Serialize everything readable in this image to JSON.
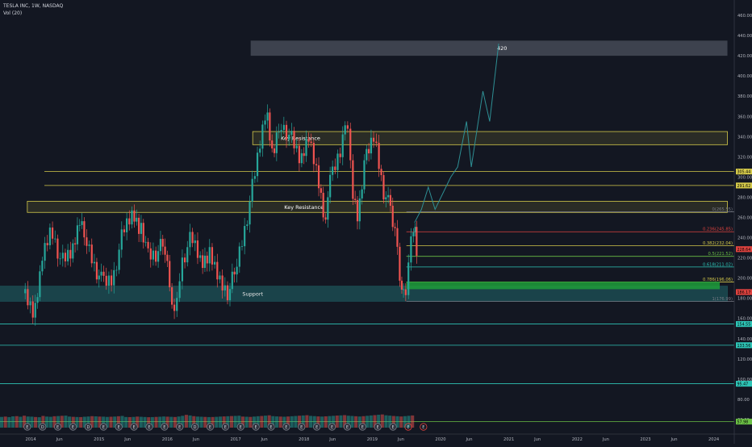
{
  "header": {
    "symbol_line": "TESLA INC, 1W, NASDAQ",
    "indicator_line": "Vol (20)"
  },
  "chart_data": {
    "type": "candlestick",
    "timeframe": "1W",
    "x_tick_labels": [
      "2014",
      "Jun",
      "2015",
      "Jun",
      "2016",
      "Jun",
      "2017",
      "Jun",
      "2018",
      "Jun",
      "2019",
      "Jun",
      "2020",
      "Jun",
      "2021",
      "Jun",
      "2022",
      "Jun",
      "2023",
      "Jun",
      "2024"
    ],
    "y_tick_labels": [
      "60.00",
      "80.00",
      "100.00",
      "120.00",
      "140.00",
      "160.00",
      "180.00",
      "200.00",
      "220.00",
      "240.00",
      "260.00",
      "280.00",
      "300.00",
      "320.00",
      "340.00",
      "360.00",
      "380.00",
      "400.00",
      "420.00",
      "440.00",
      "460.00"
    ],
    "ylim": [
      52,
      472
    ],
    "price_points": [
      [
        2013.9,
        185
      ],
      [
        2014.05,
        165
      ],
      [
        2014.15,
        215
      ],
      [
        2014.3,
        250
      ],
      [
        2014.45,
        215
      ],
      [
        2014.6,
        225
      ],
      [
        2014.7,
        255
      ],
      [
        2014.8,
        240
      ],
      [
        2014.95,
        210
      ],
      [
        2015.05,
        195
      ],
      [
        2015.2,
        200
      ],
      [
        2015.35,
        245
      ],
      [
        2015.5,
        265
      ],
      [
        2015.6,
        250
      ],
      [
        2015.7,
        225
      ],
      [
        2015.85,
        225
      ],
      [
        2015.95,
        235
      ],
      [
        2016.05,
        190
      ],
      [
        2016.12,
        160
      ],
      [
        2016.2,
        215
      ],
      [
        2016.35,
        240
      ],
      [
        2016.5,
        215
      ],
      [
        2016.6,
        225
      ],
      [
        2016.75,
        200
      ],
      [
        2016.9,
        185
      ],
      [
        2017.0,
        210
      ],
      [
        2017.15,
        255
      ],
      [
        2017.3,
        310
      ],
      [
        2017.45,
        370
      ],
      [
        2017.55,
        320
      ],
      [
        2017.65,
        355
      ],
      [
        2017.8,
        340
      ],
      [
        2017.95,
        315
      ],
      [
        2018.05,
        340
      ],
      [
        2018.2,
        300
      ],
      [
        2018.3,
        260
      ],
      [
        2018.4,
        300
      ],
      [
        2018.55,
        330
      ],
      [
        2018.62,
        370
      ],
      [
        2018.7,
        290
      ],
      [
        2018.8,
        260
      ],
      [
        2018.9,
        320
      ],
      [
        2019.0,
        340
      ],
      [
        2019.08,
        320
      ],
      [
        2019.15,
        290
      ],
      [
        2019.25,
        270
      ],
      [
        2019.35,
        240
      ],
      [
        2019.42,
        195
      ],
      [
        2019.47,
        178
      ],
      [
        2019.55,
        225
      ],
      [
        2019.62,
        255
      ],
      [
        2019.66,
        220
      ]
    ],
    "volume_bars": [
      62,
      70,
      58,
      75,
      80,
      66,
      90,
      72,
      68,
      60,
      55,
      85,
      70,
      65,
      78,
      82,
      88,
      92,
      70,
      64,
      60,
      58,
      66,
      72,
      80,
      75,
      70,
      68,
      62,
      66,
      70,
      78,
      85,
      60,
      58,
      62,
      70,
      65,
      60,
      55,
      58,
      62,
      66,
      72,
      68,
      64,
      60,
      72,
      88,
      110,
      96,
      80,
      70,
      66,
      62,
      58,
      60,
      64,
      70,
      74,
      78,
      82,
      86,
      90,
      70,
      66,
      62,
      70,
      78,
      84,
      92,
      100,
      80,
      74,
      70,
      66,
      72,
      78,
      84,
      90,
      96,
      102,
      86,
      80,
      74,
      70,
      76,
      82,
      88,
      94,
      98,
      104,
      90,
      84,
      78,
      72,
      80,
      88,
      96,
      104,
      112,
      120,
      100,
      92,
      84,
      78,
      72,
      80,
      88,
      96
    ],
    "projection_label": "420",
    "zones": [
      {
        "name": "420",
        "lo": 420,
        "hi": 435,
        "x0": 2017.22,
        "x1": 2024.2,
        "color": "#4c525e"
      },
      {
        "name": "Key Resistance",
        "lo": 332,
        "hi": 345,
        "x0": 2017.25,
        "x1": 2024.2,
        "color": "#d4c94a"
      },
      {
        "name": "Key Resistance",
        "lo": 265,
        "hi": 276,
        "x0": 2013.95,
        "x1": 2024.2,
        "color": "#d4c94a"
      },
      {
        "name": "Support",
        "lo": 177,
        "hi": 192,
        "x0": 2013.5,
        "x1": 2024.2,
        "color": "#1d4f55"
      }
    ],
    "zone_labels": [
      "Key Resistance",
      "Key Resistance",
      "Support"
    ],
    "horizontal_levels": [
      {
        "price": 305.44,
        "label": "305.44",
        "color": "#d4c94a"
      },
      {
        "price": 291.62,
        "label": "291.62",
        "color": "#d4c94a"
      },
      {
        "price": 154.55,
        "label": "154.55",
        "color": "#2ec4b6"
      },
      {
        "price": 133.56,
        "label": "133.56",
        "color": "#2ec4b6"
      },
      {
        "price": 95.47,
        "label": "95.47",
        "color": "#2ec4b6"
      },
      {
        "price": 57.98,
        "label": "57.98",
        "color": "#6abe45"
      }
    ],
    "fib_levels": [
      {
        "price": 265.55,
        "label": "0(265.55)",
        "color": "#787b86"
      },
      {
        "price": 245.85,
        "label": "0.236(245.85)",
        "color": "#e0433f"
      },
      {
        "price": 232.04,
        "label": "0.382(232.04)",
        "color": "#d4c94a"
      },
      {
        "price": 221.52,
        "label": "0.5(221.52)",
        "color": "#6abe45"
      },
      {
        "price": 211.02,
        "label": "0.618(211.02)",
        "color": "#2ec4b6"
      },
      {
        "price": 196.06,
        "label": "0.786(196.06)",
        "color": "#d4c94a"
      },
      {
        "price": 176.99,
        "label": "1(176.99)",
        "color": "#787b86"
      }
    ],
    "price_badges": [
      {
        "price": 228.64,
        "label": "228.64",
        "color": "#e0433f"
      },
      {
        "price": 186.17,
        "label": "186.17",
        "color": "#e0433f"
      }
    ],
    "projection": [
      [
        2019.62,
        255
      ],
      [
        2019.72,
        268
      ],
      [
        2019.82,
        290
      ],
      [
        2019.92,
        268
      ],
      [
        2020.15,
        300
      ],
      [
        2020.25,
        310
      ],
      [
        2020.38,
        355
      ],
      [
        2020.45,
        310
      ],
      [
        2020.62,
        385
      ],
      [
        2020.72,
        355
      ],
      [
        2020.85,
        432
      ]
    ],
    "event_markers": [
      "E",
      "D",
      "E",
      "E",
      "D",
      "E",
      "E",
      "E",
      "E",
      "E",
      "E",
      "D",
      "E",
      "E",
      "E",
      "E",
      "E",
      "E",
      "E",
      "E",
      "E",
      "E",
      "E",
      "E",
      "E",
      "E",
      "E"
    ],
    "colors": {
      "up": "#26a69a",
      "down": "#ef5350",
      "background": "#131722",
      "axis_text": "#b2b5be",
      "projection": "#2e8f94"
    }
  }
}
